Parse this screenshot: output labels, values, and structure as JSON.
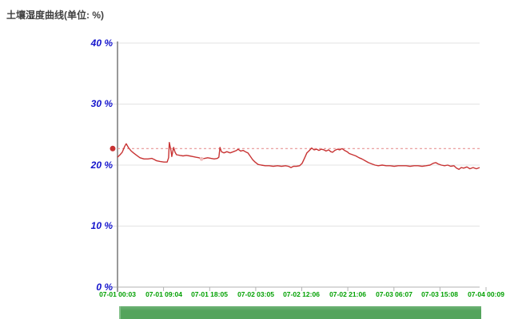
{
  "page": {
    "title": "土壤湿度曲线(单位: %)"
  },
  "colors": {
    "line": "#C83333",
    "threshold": "#E89494",
    "marker": "#C83333",
    "point_marker": "#F0BCBC",
    "grid": "#E3E3E3",
    "axis": "#999999",
    "baseline": "#B3B3B3",
    "y_label": "#1414CC",
    "x_label": "#00A000",
    "scrollbar": "#54A45C"
  },
  "chart_data": {
    "type": "line",
    "title": "土壤湿度曲线(单位: %)",
    "unit": "%",
    "ylim": [
      0,
      40
    ],
    "grid": true,
    "legend": false,
    "y_tick_values": [
      0,
      10,
      20,
      30,
      40
    ],
    "y_tick_labels": [
      "0 %",
      "10 %",
      "20 %",
      "30 %",
      "40 %"
    ],
    "x_tick_labels": [
      "07-01 00:03",
      "07-01 09:04",
      "07-01 18:05",
      "07-02 03:05",
      "07-02 12:06",
      "07-02 21:06",
      "07-03 06:07",
      "07-03 15:08",
      "07-04 00:09"
    ],
    "threshold_value": 22.7,
    "marker_point": [
      0.232,
      21.0
    ],
    "series": [
      {
        "name": "土壤湿度",
        "color": "#C83333",
        "points": [
          [
            0,
            21.3
          ],
          [
            0.007,
            21.7
          ],
          [
            0.013,
            22.1
          ],
          [
            0.02,
            23.1
          ],
          [
            0.024,
            23.5
          ],
          [
            0.031,
            22.8
          ],
          [
            0.038,
            22.3
          ],
          [
            0.044,
            22.0
          ],
          [
            0.053,
            21.6
          ],
          [
            0.062,
            21.2
          ],
          [
            0.073,
            21.0
          ],
          [
            0.084,
            21.0
          ],
          [
            0.095,
            21.1
          ],
          [
            0.102,
            20.9
          ],
          [
            0.108,
            20.7
          ],
          [
            0.117,
            20.6
          ],
          [
            0.128,
            20.5
          ],
          [
            0.137,
            20.5
          ],
          [
            0.141,
            21.2
          ],
          [
            0.143,
            23.7
          ],
          [
            0.148,
            22.3
          ],
          [
            0.15,
            21.4
          ],
          [
            0.155,
            22.9
          ],
          [
            0.159,
            22.1
          ],
          [
            0.163,
            21.7
          ],
          [
            0.172,
            21.6
          ],
          [
            0.181,
            21.5
          ],
          [
            0.19,
            21.6
          ],
          [
            0.199,
            21.5
          ],
          [
            0.208,
            21.4
          ],
          [
            0.216,
            21.3
          ],
          [
            0.225,
            21.2
          ],
          [
            0.232,
            21.0
          ],
          [
            0.241,
            21.1
          ],
          [
            0.249,
            21.2
          ],
          [
            0.258,
            21.1
          ],
          [
            0.267,
            21.0
          ],
          [
            0.276,
            21.1
          ],
          [
            0.28,
            21.3
          ],
          [
            0.283,
            22.9
          ],
          [
            0.287,
            22.2
          ],
          [
            0.294,
            22.0
          ],
          [
            0.302,
            22.2
          ],
          [
            0.311,
            22.0
          ],
          [
            0.32,
            22.2
          ],
          [
            0.329,
            22.4
          ],
          [
            0.333,
            22.6
          ],
          [
            0.34,
            22.3
          ],
          [
            0.347,
            22.4
          ],
          [
            0.353,
            22.2
          ],
          [
            0.36,
            22.0
          ],
          [
            0.366,
            21.5
          ],
          [
            0.373,
            20.9
          ],
          [
            0.38,
            20.5
          ],
          [
            0.388,
            20.1
          ],
          [
            0.397,
            20.0
          ],
          [
            0.408,
            19.9
          ],
          [
            0.419,
            19.9
          ],
          [
            0.43,
            19.8
          ],
          [
            0.442,
            19.9
          ],
          [
            0.453,
            19.8
          ],
          [
            0.464,
            19.9
          ],
          [
            0.472,
            19.8
          ],
          [
            0.479,
            19.6
          ],
          [
            0.486,
            19.8
          ],
          [
            0.494,
            19.8
          ],
          [
            0.503,
            19.9
          ],
          [
            0.51,
            20.3
          ],
          [
            0.517,
            21.2
          ],
          [
            0.523,
            22.0
          ],
          [
            0.53,
            22.4
          ],
          [
            0.536,
            22.8
          ],
          [
            0.543,
            22.5
          ],
          [
            0.55,
            22.6
          ],
          [
            0.556,
            22.4
          ],
          [
            0.563,
            22.6
          ],
          [
            0.57,
            22.5
          ],
          [
            0.576,
            22.3
          ],
          [
            0.583,
            22.5
          ],
          [
            0.589,
            22.2
          ],
          [
            0.594,
            22.1
          ],
          [
            0.6,
            22.4
          ],
          [
            0.607,
            22.6
          ],
          [
            0.614,
            22.5
          ],
          [
            0.62,
            22.7
          ],
          [
            0.627,
            22.4
          ],
          [
            0.634,
            22.2
          ],
          [
            0.64,
            21.9
          ],
          [
            0.649,
            21.7
          ],
          [
            0.658,
            21.5
          ],
          [
            0.667,
            21.2
          ],
          [
            0.675,
            21.0
          ],
          [
            0.684,
            20.7
          ],
          [
            0.693,
            20.4
          ],
          [
            0.702,
            20.2
          ],
          [
            0.711,
            20.0
          ],
          [
            0.72,
            19.9
          ],
          [
            0.731,
            20.0
          ],
          [
            0.742,
            19.9
          ],
          [
            0.753,
            19.9
          ],
          [
            0.764,
            19.8
          ],
          [
            0.775,
            19.9
          ],
          [
            0.786,
            19.9
          ],
          [
            0.797,
            19.9
          ],
          [
            0.808,
            19.8
          ],
          [
            0.819,
            19.9
          ],
          [
            0.83,
            19.9
          ],
          [
            0.841,
            19.8
          ],
          [
            0.852,
            19.9
          ],
          [
            0.863,
            20.0
          ],
          [
            0.872,
            20.3
          ],
          [
            0.879,
            20.4
          ],
          [
            0.885,
            20.2
          ],
          [
            0.894,
            20.0
          ],
          [
            0.903,
            19.9
          ],
          [
            0.912,
            20.0
          ],
          [
            0.92,
            19.8
          ],
          [
            0.929,
            19.9
          ],
          [
            0.936,
            19.5
          ],
          [
            0.943,
            19.3
          ],
          [
            0.949,
            19.6
          ],
          [
            0.956,
            19.5
          ],
          [
            0.965,
            19.7
          ],
          [
            0.973,
            19.4
          ],
          [
            0.982,
            19.6
          ],
          [
            0.991,
            19.4
          ],
          [
            1,
            19.6
          ]
        ]
      }
    ]
  },
  "scrollbar": {
    "kind": "range-scrollbar"
  }
}
